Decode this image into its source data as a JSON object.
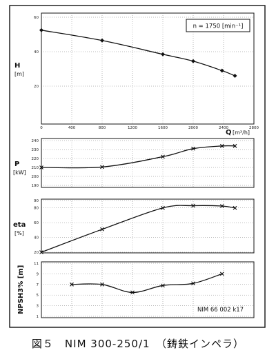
{
  "caption": "図５　NIM 300-250/1　（鋳鉄インペラ）",
  "speed_box": "n = 1750 [min⁻¹]",
  "model_note": "NIM 66 002 k17",
  "chart_data": [
    {
      "type": "line",
      "ylabel": "H",
      "yunit": "[m]",
      "ylim": [
        20,
        60
      ],
      "yticks": [
        "60",
        "40",
        "20"
      ],
      "xlabel": "Q",
      "xunit": "[m³/h]",
      "xlim": [
        0,
        2800
      ],
      "xticks": [
        "0",
        "400",
        "800",
        "1200",
        "1600",
        "2000",
        "2400",
        "2800"
      ],
      "x": [
        0,
        800,
        1600,
        2000,
        2380,
        2550
      ],
      "values": [
        52.5,
        46.5,
        38.5,
        34.5,
        29.0,
        26.0
      ]
    },
    {
      "type": "line",
      "ylabel": "P",
      "yunit": "[kW]",
      "ylim": [
        190,
        240
      ],
      "yticks": [
        "240",
        "230",
        "220",
        "210",
        "200",
        "190"
      ],
      "x": [
        0,
        800,
        1600,
        2000,
        2380,
        2550
      ],
      "values": [
        210.0,
        210.5,
        222.0,
        231.0,
        234.0,
        234.0
      ]
    },
    {
      "type": "line",
      "ylabel": "eta",
      "yunit": "[%]",
      "ylim": [
        20,
        90
      ],
      "yticks": [
        "90",
        "80",
        "60",
        "40",
        "20"
      ],
      "x": [
        0,
        800,
        1600,
        2000,
        2380,
        2550
      ],
      "values": [
        20.0,
        51.0,
        80.0,
        83.0,
        82.5,
        80.0
      ]
    },
    {
      "type": "line",
      "ylabel": "NPSH3% [m]",
      "ylim": [
        1,
        11
      ],
      "yticks": [
        "11",
        "9",
        "7",
        "5",
        "3",
        "1"
      ],
      "x": [
        400,
        800,
        1200,
        1600,
        2000,
        2380
      ],
      "values": [
        7.0,
        7.0,
        5.5,
        6.8,
        7.2,
        9.0
      ]
    }
  ]
}
